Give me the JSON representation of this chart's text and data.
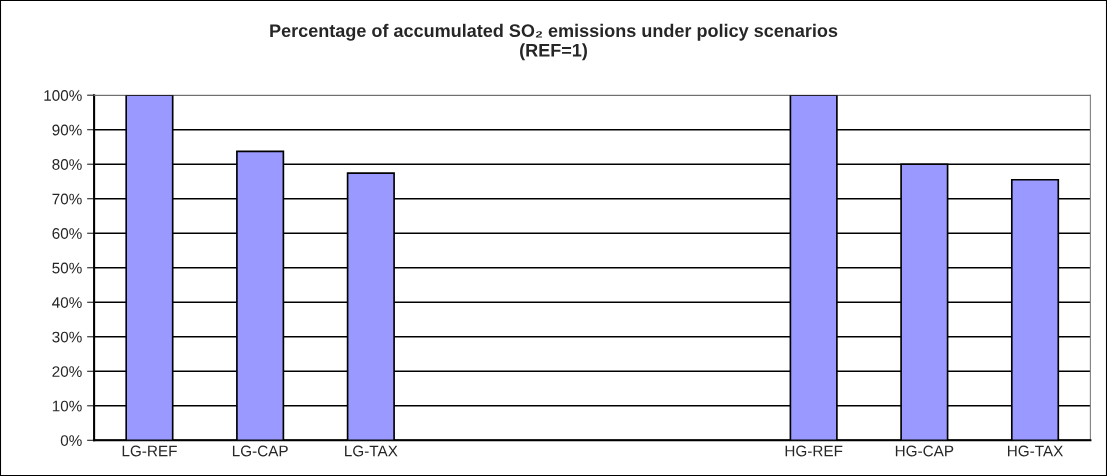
{
  "chart_data": {
    "type": "bar",
    "title": "Percentage of accumulated SO₂ emissions under policy scenarios\n(REF=1)",
    "categories": [
      "LG-REF",
      "LG-CAP",
      "LG-TAX",
      null,
      null,
      null,
      "HG-REF",
      "HG-CAP",
      "HG-TAX"
    ],
    "values": [
      100,
      83.7,
      77.4,
      null,
      null,
      null,
      100,
      80,
      75.5
    ],
    "color": "#9999ff",
    "ylim": [
      0,
      100
    ],
    "yticks": [
      {
        "value": 0,
        "label": "0%"
      },
      {
        "value": 10,
        "label": "10%"
      },
      {
        "value": 20,
        "label": "20%"
      },
      {
        "value": 30,
        "label": "30%"
      },
      {
        "value": 40,
        "label": "40%"
      },
      {
        "value": 50,
        "label": "50%"
      },
      {
        "value": 60,
        "label": "60%"
      },
      {
        "value": 70,
        "label": "70%"
      },
      {
        "value": 80,
        "label": "80%"
      },
      {
        "value": 90,
        "label": "90%"
      },
      {
        "value": 100,
        "label": "100%"
      }
    ],
    "grid": "y",
    "legend": false
  }
}
